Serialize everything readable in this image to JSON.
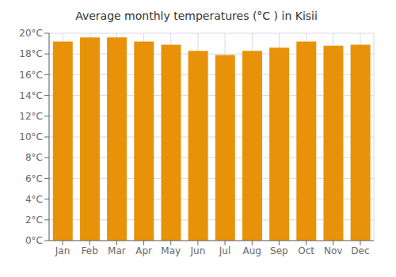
{
  "chart_data": {
    "type": "bar",
    "title": "Average monthly temperatures (°C ) in Kisii",
    "categories": [
      "Jan",
      "Feb",
      "Mar",
      "Apr",
      "May",
      "Jun",
      "Jul",
      "Aug",
      "Sep",
      "Oct",
      "Nov",
      "Dec"
    ],
    "values": [
      19.2,
      19.6,
      19.6,
      19.2,
      18.9,
      18.3,
      17.9,
      18.3,
      18.6,
      19.2,
      18.8,
      18.9
    ],
    "color": "#E8920A",
    "ylim": [
      0,
      20
    ],
    "yticks": [
      {
        "value": 0,
        "label": "0°C"
      },
      {
        "value": 2,
        "label": "2°C"
      },
      {
        "value": 4,
        "label": "4°C"
      },
      {
        "value": 6,
        "label": "6°C"
      },
      {
        "value": 8,
        "label": "8°C"
      },
      {
        "value": 10,
        "label": "10°C"
      },
      {
        "value": 12,
        "label": "12°C"
      },
      {
        "value": 14,
        "label": "14°C"
      },
      {
        "value": 16,
        "label": "16°C"
      },
      {
        "value": 18,
        "label": "18°C"
      },
      {
        "value": 20,
        "label": "20°C"
      }
    ],
    "grid": true
  }
}
